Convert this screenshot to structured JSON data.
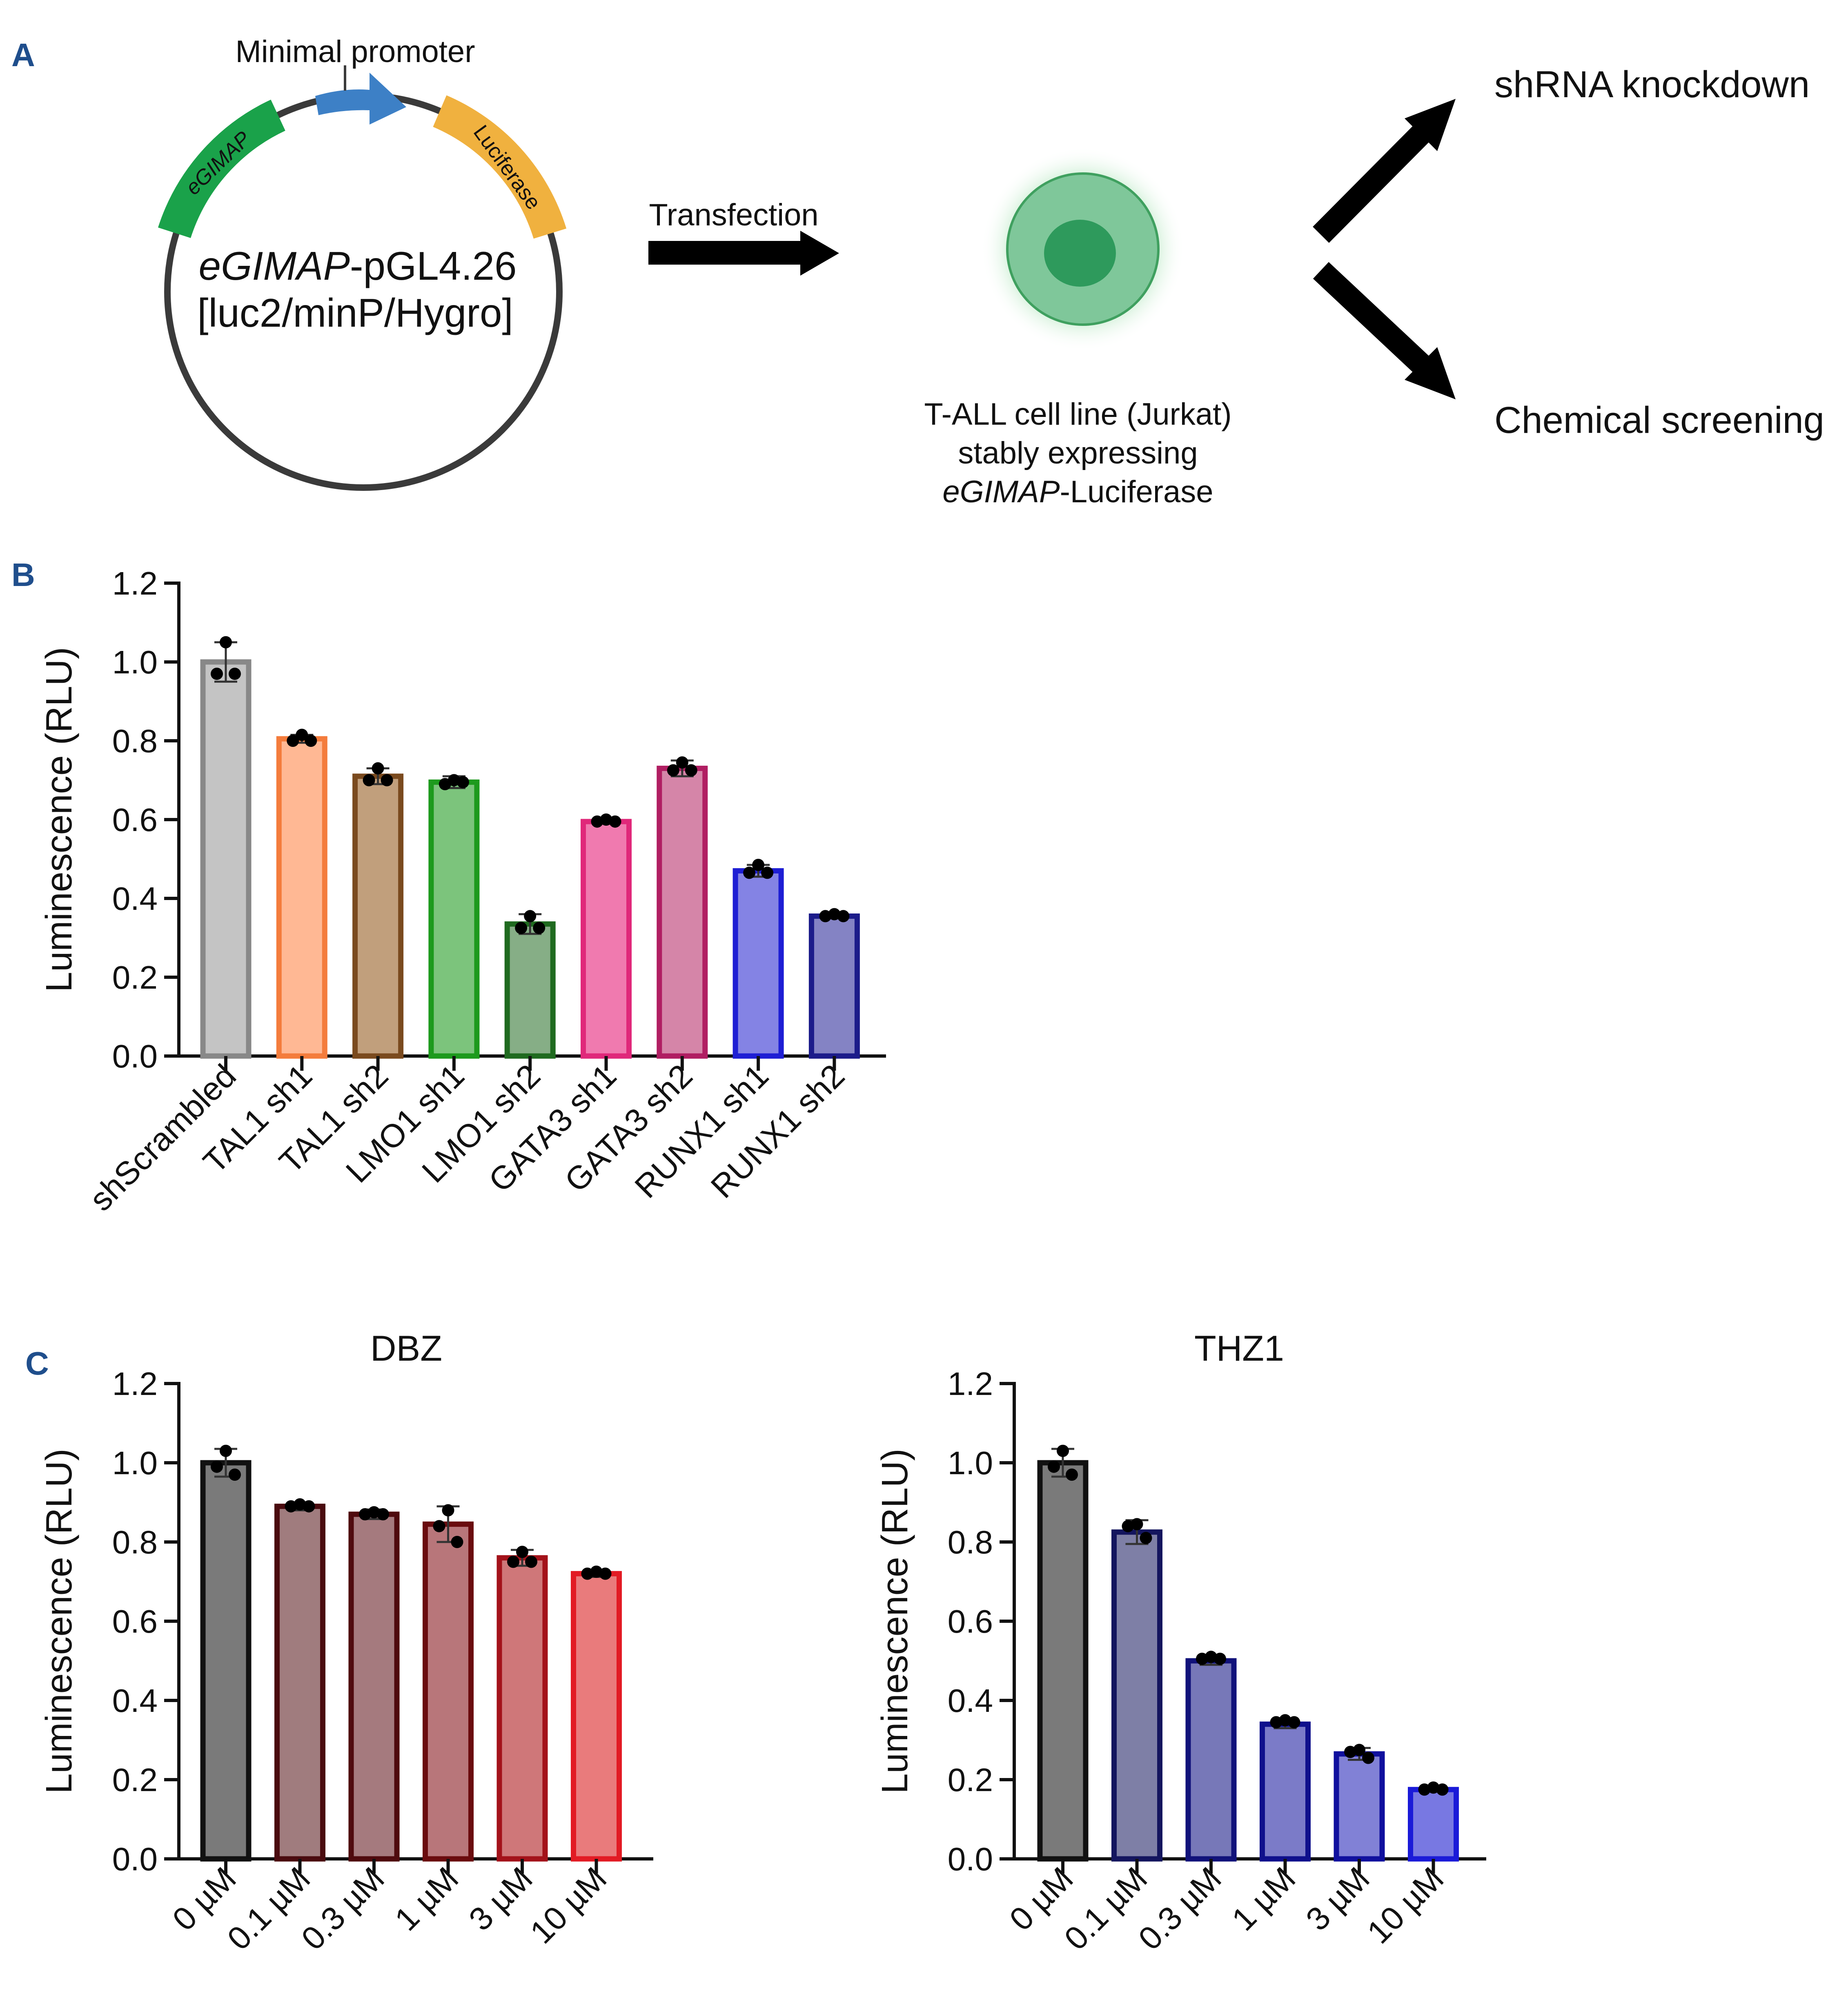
{
  "panels": {
    "a": "A",
    "b": "B",
    "c": "C"
  },
  "diagram": {
    "promoter_label": "Minimal promoter",
    "segment_left": "eGIMAP",
    "segment_right": "Luciferase",
    "plasmid_line1_italic": "eGIMAP",
    "plasmid_line1_rest": "-pGL4.26",
    "plasmid_line2": "[luc2/minP/Hygro]",
    "transfection_label": "Transfection",
    "cell_line1": "T-ALL cell line (Jurkat)",
    "cell_line2": "stably expressing",
    "cell_line3_italic": "eGIMAP",
    "cell_line3_rest": "-Luciferase",
    "outcome_top": "shRNA knockdown",
    "outcome_bottom": "Chemical screening",
    "colors": {
      "egimap": "#1aa24a",
      "promoter": "#3d80c6",
      "luciferase": "#f0b13f",
      "cell_outer": "#7fc79a",
      "cell_nucleus": "#2e9a5c"
    }
  },
  "chart_data": [
    {
      "id": "B",
      "type": "bar",
      "title": "",
      "xlabel": "",
      "ylabel": "Luminescence (RLU)",
      "ylim": [
        0,
        1.2
      ],
      "yticks": [
        "0.0",
        "0.2",
        "0.4",
        "0.6",
        "0.8",
        "1.0",
        "1.2"
      ],
      "categories": [
        "shScrambled",
        "TAL1 sh1",
        "TAL1 sh2",
        "LMO1 sh1",
        "LMO1 sh2",
        "GATA3 sh1",
        "GATA3 sh2",
        "RUNX1 sh1",
        "RUNX1 sh2"
      ],
      "values": [
        1.0,
        0.805,
        0.71,
        0.695,
        0.335,
        0.595,
        0.73,
        0.47,
        0.355
      ],
      "errors": [
        0.05,
        0.01,
        0.02,
        0.015,
        0.025,
        0.005,
        0.02,
        0.015,
        0.005
      ],
      "points": [
        [
          1.05,
          0.97,
          0.97
        ],
        [
          0.815,
          0.8,
          0.8
        ],
        [
          0.73,
          0.7,
          0.7
        ],
        [
          0.7,
          0.69,
          0.695
        ],
        [
          0.355,
          0.325,
          0.325
        ],
        [
          0.6,
          0.595,
          0.595
        ],
        [
          0.745,
          0.725,
          0.725
        ],
        [
          0.485,
          0.465,
          0.465
        ],
        [
          0.36,
          0.355,
          0.355
        ]
      ],
      "fills": [
        "#c4c4c4",
        "#ffb894",
        "#c19f7c",
        "#7cc47c",
        "#86ae86",
        "#f07aaf",
        "#d585a8",
        "#8483e4",
        "#8483c4"
      ],
      "strokes": [
        "#888888",
        "#f47c3c",
        "#7a4a1e",
        "#1d9a1d",
        "#1f6a1f",
        "#e0287a",
        "#b01e62",
        "#1e1ed4",
        "#1c1c8a"
      ]
    },
    {
      "id": "C-DBZ",
      "type": "bar",
      "title": "DBZ",
      "xlabel": "",
      "ylabel": "Luminescence (RLU)",
      "ylim": [
        0,
        1.2
      ],
      "yticks": [
        "0.0",
        "0.2",
        "0.4",
        "0.6",
        "0.8",
        "1.0",
        "1.2"
      ],
      "categories": [
        "0 µM",
        "0.1 µM",
        "0.3 µM",
        "1 µM",
        "3 µM",
        "10 µM"
      ],
      "values": [
        1.0,
        0.89,
        0.87,
        0.845,
        0.76,
        0.72
      ],
      "errors": [
        0.035,
        0.01,
        0.012,
        0.045,
        0.02,
        0.008
      ],
      "points": [
        [
          1.03,
          0.99,
          0.97
        ],
        [
          0.895,
          0.89,
          0.89
        ],
        [
          0.875,
          0.87,
          0.87
        ],
        [
          0.88,
          0.84,
          0.8
        ],
        [
          0.775,
          0.75,
          0.75
        ],
        [
          0.725,
          0.72,
          0.72
        ]
      ],
      "fills": [
        "#7a7a7a",
        "#a07c7e",
        "#a57a7e",
        "#b8767a",
        "#cf7779",
        "#e97b7c"
      ],
      "strokes": [
        "#111111",
        "#4a0b0f",
        "#4f0a0e",
        "#6a0b0e",
        "#a3121a",
        "#e21b24"
      ]
    },
    {
      "id": "C-THZ1",
      "type": "bar",
      "title": "THZ1",
      "xlabel": "",
      "ylabel": "Luminescence (RLU)",
      "ylim": [
        0,
        1.2
      ],
      "yticks": [
        "0.0",
        "0.2",
        "0.4",
        "0.6",
        "0.8",
        "1.0",
        "1.2"
      ],
      "categories": [
        "0 µM",
        "0.1 µM",
        "0.3 µM",
        "1 µM",
        "3 µM",
        "10 µM"
      ],
      "values": [
        1.0,
        0.825,
        0.5,
        0.34,
        0.265,
        0.175
      ],
      "errors": [
        0.035,
        0.03,
        0.01,
        0.01,
        0.015,
        0.005
      ],
      "points": [
        [
          1.03,
          0.99,
          0.97
        ],
        [
          0.845,
          0.84,
          0.81
        ],
        [
          0.51,
          0.505,
          0.505
        ],
        [
          0.35,
          0.345,
          0.345
        ],
        [
          0.275,
          0.27,
          0.255
        ],
        [
          0.18,
          0.175,
          0.175
        ]
      ],
      "fills": [
        "#7a7a7a",
        "#7e7fa6",
        "#7778b8",
        "#7b7bc8",
        "#8181d6",
        "#7878e2"
      ],
      "strokes": [
        "#111111",
        "#14155e",
        "#11127a",
        "#0f108c",
        "#10109e",
        "#1a1ad8"
      ]
    }
  ]
}
